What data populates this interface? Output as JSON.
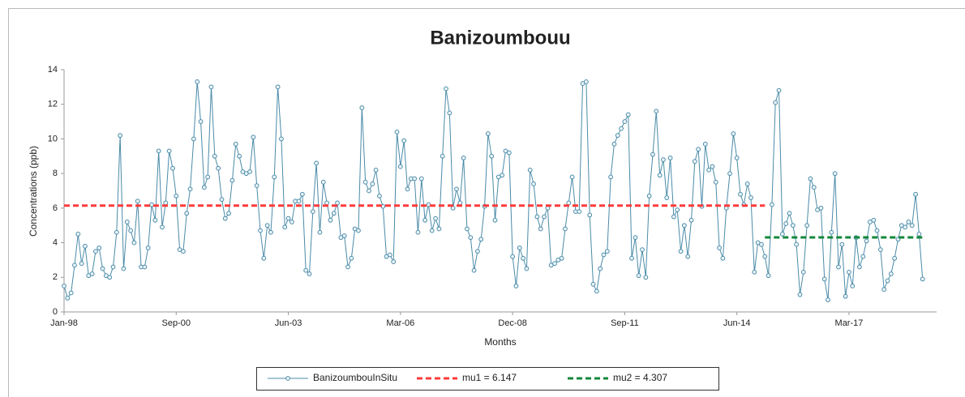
{
  "chart_data": {
    "type": "line",
    "title": "Banizoumbouu",
    "xlabel": "Months",
    "ylabel": "Concentrations (ppb)",
    "categories": [
      "Jan-98",
      null,
      null,
      null,
      null,
      null,
      null,
      null,
      null,
      null,
      null,
      null,
      null,
      null,
      null,
      null,
      null,
      null,
      null,
      null,
      null,
      null,
      null,
      null,
      null,
      null,
      null,
      null,
      null,
      null,
      null,
      null,
      "Sep-00",
      null,
      null,
      null,
      null,
      null,
      null,
      null,
      null,
      null,
      null,
      null,
      null,
      null,
      null,
      null,
      null,
      null,
      null,
      null,
      null,
      null,
      null,
      null,
      null,
      null,
      null,
      null,
      null,
      null,
      null,
      null,
      "Jun-03",
      null,
      null,
      null,
      null,
      null,
      null,
      null,
      null,
      null,
      null,
      null,
      null,
      null,
      null,
      null,
      null,
      null,
      null,
      null,
      null,
      null,
      null,
      null,
      null,
      null,
      null,
      null,
      null,
      null,
      null,
      null,
      "Mar-06",
      null,
      null,
      null,
      null,
      null,
      null,
      null,
      null,
      null,
      null,
      null,
      null,
      null,
      null,
      null,
      null,
      null,
      null,
      null,
      null,
      null,
      null,
      null,
      null,
      null,
      null,
      null,
      null,
      null,
      null,
      null,
      "Dec-08",
      null,
      null,
      null,
      null,
      null,
      null,
      null,
      null,
      null,
      null,
      null,
      null,
      null,
      null,
      null,
      null,
      null,
      null,
      null,
      null,
      null,
      null,
      null,
      null,
      null,
      null,
      null,
      null,
      null,
      null,
      null,
      "Sep-11",
      null,
      null,
      null,
      null,
      null,
      null,
      null,
      null,
      null,
      null,
      null,
      null,
      null,
      null,
      null,
      null,
      null,
      null,
      null,
      null,
      null,
      null,
      null,
      null,
      null,
      null,
      null,
      null,
      null,
      null,
      null,
      "Jun-14",
      null,
      null,
      null,
      null,
      null,
      null,
      null,
      null,
      null,
      null,
      null,
      null,
      null,
      null,
      null,
      null,
      null,
      null,
      null,
      null,
      null,
      null,
      null,
      null,
      null,
      null,
      null,
      null,
      null,
      null,
      null,
      "Mar-17",
      null,
      null,
      null,
      null,
      null,
      null,
      null,
      null,
      null,
      null,
      null,
      null,
      null,
      null,
      null,
      null,
      null,
      null,
      null,
      null,
      null
    ],
    "series": [
      {
        "name": "BanizoumbouInSitu",
        "color": "#4a8ba8",
        "style": "solid",
        "markers": true,
        "values": [
          1.5,
          0.8,
          1.1,
          2.7,
          4.5,
          2.8,
          3.8,
          2.1,
          2.2,
          3.5,
          3.7,
          2.5,
          2.1,
          2.0,
          2.6,
          4.6,
          10.2,
          2.5,
          5.2,
          4.7,
          4.0,
          6.4,
          2.6,
          2.6,
          3.7,
          6.2,
          5.3,
          9.3,
          4.9,
          6.3,
          9.3,
          8.3,
          6.7,
          3.6,
          3.5,
          5.7,
          7.1,
          10.0,
          13.3,
          11.0,
          7.2,
          7.8,
          13.0,
          9.0,
          8.3,
          6.5,
          5.4,
          5.7,
          7.6,
          9.7,
          9.0,
          8.1,
          8.0,
          8.1,
          10.1,
          7.3,
          4.7,
          3.1,
          5.0,
          4.6,
          7.8,
          13.0,
          10.0,
          4.9,
          5.4,
          5.2,
          6.4,
          6.4,
          6.8,
          2.4,
          2.2,
          5.8,
          8.6,
          4.6,
          7.5,
          6.3,
          5.3,
          5.7,
          6.3,
          4.3,
          4.4,
          2.6,
          3.1,
          4.8,
          4.7,
          11.8,
          7.5,
          7.0,
          7.4,
          8.2,
          6.7,
          6.1,
          3.2,
          3.3,
          2.9,
          10.4,
          8.4,
          9.9,
          7.1,
          7.7,
          7.7,
          4.6,
          7.7,
          5.3,
          6.2,
          4.7,
          5.4,
          4.8,
          9.0,
          12.9,
          11.5,
          6.0,
          7.1,
          6.3,
          8.9,
          4.8,
          4.3,
          2.4,
          3.5,
          4.2,
          6.1,
          10.3,
          9.0,
          5.3,
          7.8,
          7.9,
          9.3,
          9.2,
          3.2,
          1.5,
          3.7,
          3.1,
          2.5,
          8.2,
          7.4,
          5.5,
          4.8,
          5.5,
          6.0,
          2.7,
          2.8,
          3.0,
          3.1,
          4.8,
          6.3,
          7.8,
          5.8,
          5.8,
          13.2,
          13.3,
          5.6,
          1.6,
          1.2,
          2.5,
          3.3,
          3.5,
          7.8,
          9.7,
          10.2,
          10.6,
          11.0,
          11.4,
          3.1,
          4.3,
          2.1,
          3.6,
          2.0,
          6.7,
          9.1,
          11.6,
          7.9,
          8.8,
          6.6,
          8.9,
          5.5,
          5.9,
          3.5,
          5.0,
          3.2,
          5.3,
          8.7,
          9.4,
          6.1,
          9.7,
          8.2,
          8.4,
          7.5,
          3.7,
          3.1,
          6.0,
          8.0,
          10.3,
          8.9,
          6.8,
          6.2,
          7.4,
          6.6,
          2.3,
          4.0,
          3.9,
          3.2,
          2.1,
          6.2,
          12.1,
          12.8,
          4.5,
          5.1,
          5.7,
          5.0,
          3.9,
          1.0,
          2.3,
          5.0,
          7.7,
          7.2,
          5.9,
          6.0,
          1.9,
          0.7,
          4.6,
          8.0,
          2.6,
          3.9,
          0.9,
          2.3,
          1.5,
          4.3,
          2.6,
          3.2,
          4.1,
          5.2,
          5.3,
          4.7,
          3.6,
          1.3,
          1.8,
          2.2,
          3.1,
          4.2,
          5.0,
          4.9,
          5.2,
          5.0,
          6.8,
          4.5,
          1.9
        ]
      },
      {
        "name": "mu1 = 6.147",
        "color": "#ff3b3b",
        "style": "dashed",
        "markers": false,
        "values": [
          6.147,
          6.147,
          6.147,
          6.147,
          6.147,
          6.147,
          6.147,
          6.147,
          6.147,
          6.147,
          6.147,
          6.147,
          6.147,
          6.147,
          6.147,
          6.147,
          6.147,
          6.147,
          6.147,
          6.147,
          6.147,
          6.147,
          6.147,
          6.147,
          6.147,
          6.147,
          6.147,
          6.147,
          6.147,
          6.147,
          6.147,
          6.147,
          6.147,
          6.147,
          6.147,
          6.147,
          6.147,
          6.147,
          6.147,
          6.147,
          6.147,
          6.147,
          6.147,
          6.147,
          6.147,
          6.147,
          6.147,
          6.147,
          6.147,
          6.147,
          6.147,
          6.147,
          6.147,
          6.147,
          6.147,
          6.147,
          6.147,
          6.147,
          6.147,
          6.147,
          6.147,
          6.147,
          6.147,
          6.147,
          6.147,
          6.147,
          6.147,
          6.147,
          6.147,
          6.147,
          6.147,
          6.147,
          6.147,
          6.147,
          6.147,
          6.147,
          6.147,
          6.147,
          6.147,
          6.147,
          6.147,
          6.147,
          6.147,
          6.147,
          6.147,
          6.147,
          6.147,
          6.147,
          6.147,
          6.147,
          6.147,
          6.147,
          6.147,
          6.147,
          6.147,
          6.147,
          6.147,
          6.147,
          6.147,
          6.147,
          6.147,
          6.147,
          6.147,
          6.147,
          6.147,
          6.147,
          6.147,
          6.147,
          6.147,
          6.147,
          6.147,
          6.147,
          6.147,
          6.147,
          6.147,
          6.147,
          6.147,
          6.147,
          6.147,
          6.147,
          6.147,
          6.147,
          6.147,
          6.147,
          6.147,
          6.147,
          6.147,
          6.147,
          6.147,
          6.147,
          6.147,
          6.147,
          6.147,
          6.147,
          6.147,
          6.147,
          6.147,
          6.147,
          6.147,
          6.147,
          6.147,
          6.147,
          6.147,
          6.147,
          6.147,
          6.147,
          6.147,
          6.147,
          6.147,
          6.147,
          6.147,
          6.147,
          6.147,
          6.147,
          6.147,
          6.147,
          6.147,
          6.147,
          6.147,
          6.147,
          6.147,
          6.147,
          6.147,
          6.147,
          6.147,
          6.147,
          6.147,
          6.147,
          6.147,
          6.147,
          6.147,
          6.147,
          6.147,
          6.147,
          6.147,
          6.147,
          6.147,
          6.147,
          6.147,
          6.147,
          6.147,
          6.147,
          6.147,
          6.147,
          6.147,
          6.147,
          6.147,
          6.147,
          6.147,
          6.147,
          6.147,
          6.147,
          6.147,
          6.147,
          6.147,
          6.147,
          6.147,
          6.147,
          6.147,
          6.147,
          6.147,
          null,
          null,
          null,
          null,
          null,
          null,
          null,
          null,
          null,
          null,
          null,
          null,
          null,
          null,
          null,
          null,
          null,
          null,
          null,
          null,
          null,
          null,
          null,
          null,
          null,
          null,
          null,
          null,
          null,
          null,
          null,
          null,
          null,
          null,
          null,
          null,
          null,
          null,
          null,
          null,
          null,
          null,
          null,
          null,
          null
        ]
      },
      {
        "name": "mu2 = 4.307",
        "color": "#13873a",
        "style": "dashed",
        "markers": false,
        "values": [
          null,
          null,
          null,
          null,
          null,
          null,
          null,
          null,
          null,
          null,
          null,
          null,
          null,
          null,
          null,
          null,
          null,
          null,
          null,
          null,
          null,
          null,
          null,
          null,
          null,
          null,
          null,
          null,
          null,
          null,
          null,
          null,
          null,
          null,
          null,
          null,
          null,
          null,
          null,
          null,
          null,
          null,
          null,
          null,
          null,
          null,
          null,
          null,
          null,
          null,
          null,
          null,
          null,
          null,
          null,
          null,
          null,
          null,
          null,
          null,
          null,
          null,
          null,
          null,
          null,
          null,
          null,
          null,
          null,
          null,
          null,
          null,
          null,
          null,
          null,
          null,
          null,
          null,
          null,
          null,
          null,
          null,
          null,
          null,
          null,
          null,
          null,
          null,
          null,
          null,
          null,
          null,
          null,
          null,
          null,
          null,
          null,
          null,
          null,
          null,
          null,
          null,
          null,
          null,
          null,
          null,
          null,
          null,
          null,
          null,
          null,
          null,
          null,
          null,
          null,
          null,
          null,
          null,
          null,
          null,
          null,
          null,
          null,
          null,
          null,
          null,
          null,
          null,
          null,
          null,
          null,
          null,
          null,
          null,
          null,
          null,
          null,
          null,
          null,
          null,
          null,
          null,
          null,
          null,
          null,
          null,
          null,
          null,
          null,
          null,
          null,
          null,
          null,
          null,
          null,
          null,
          null,
          null,
          null,
          null,
          null,
          null,
          null,
          null,
          null,
          null,
          null,
          null,
          null,
          null,
          null,
          null,
          null,
          null,
          null,
          null,
          null,
          null,
          null,
          null,
          null,
          null,
          null,
          null,
          null,
          null,
          null,
          null,
          null,
          null,
          null,
          null,
          null,
          null,
          null,
          null,
          null,
          null,
          null,
          null,
          4.307,
          4.307,
          4.307,
          4.307,
          4.307,
          4.307,
          4.307,
          4.307,
          4.307,
          4.307,
          4.307,
          4.307,
          4.307,
          4.307,
          4.307,
          4.307,
          4.307,
          4.307,
          4.307,
          4.307,
          4.307,
          4.307,
          4.307,
          4.307,
          4.307,
          4.307,
          4.307,
          4.307,
          4.307,
          4.307,
          4.307,
          4.307,
          4.307,
          4.307,
          4.307,
          4.307,
          4.307,
          4.307,
          4.307,
          4.307,
          4.307,
          4.307,
          4.307,
          4.307,
          4.307,
          4.307
        ]
      }
    ],
    "ylim": [
      0,
      14
    ],
    "yticks": [
      0,
      2,
      4,
      6,
      8,
      10,
      12,
      14
    ],
    "grid": false,
    "legend": "bottom"
  }
}
